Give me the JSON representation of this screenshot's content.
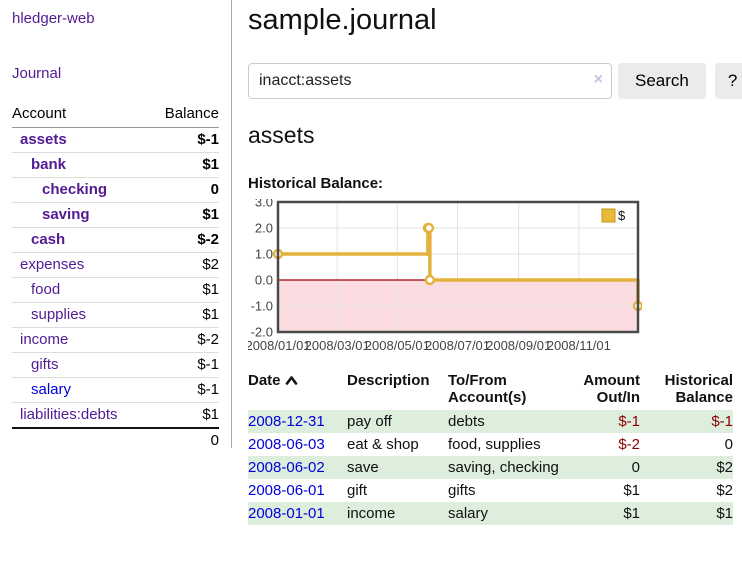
{
  "app": {
    "title": "hledger-web"
  },
  "sidebar": {
    "journal_link": "Journal",
    "accounts": {
      "headers": [
        "Account",
        "Balance"
      ],
      "rows": [
        {
          "name": "assets",
          "balance": "$-1"
        },
        {
          "name": "bank",
          "balance": "$1"
        },
        {
          "name": "checking",
          "balance": "0"
        },
        {
          "name": "saving",
          "balance": "$1"
        },
        {
          "name": "cash",
          "balance": "$-2"
        },
        {
          "name": "expenses",
          "balance": "$2"
        },
        {
          "name": "food",
          "balance": "$1"
        },
        {
          "name": "supplies",
          "balance": "$1"
        },
        {
          "name": "income",
          "balance": "$-2"
        },
        {
          "name": "gifts",
          "balance": "$-1"
        },
        {
          "name": "salary",
          "balance": "$-1"
        },
        {
          "name": "liabilities:debts",
          "balance": "$1"
        }
      ],
      "total": "0"
    }
  },
  "main": {
    "title": "sample.journal",
    "search": {
      "value": "inacct:assets",
      "clear_icon": "×",
      "button_label": "Search",
      "help_label": "?"
    },
    "account_heading": "assets",
    "chart_label": "Historical Balance:",
    "register": {
      "headers": [
        "Date",
        "Description",
        "To/From Account(s)",
        "Amount Out/In",
        "Historical Balance"
      ],
      "rows": [
        {
          "date": "2008-12-31",
          "description": "pay off",
          "accounts": "debts",
          "amount": "$-1",
          "balance": "$-1"
        },
        {
          "date": "2008-06-03",
          "description": "eat & shop",
          "accounts": "food, supplies",
          "amount": "$-2",
          "balance": "0"
        },
        {
          "date": "2008-06-02",
          "description": "save",
          "accounts": "saving, checking",
          "amount": "0",
          "balance": "$2"
        },
        {
          "date": "2008-06-01",
          "description": "gift",
          "accounts": "gifts",
          "amount": "$1",
          "balance": "$2"
        },
        {
          "date": "2008-01-01",
          "description": "income",
          "accounts": "salary",
          "amount": "$1",
          "balance": "$1"
        }
      ]
    }
  },
  "chart_data": {
    "type": "line",
    "title": "Historical Balance",
    "steps": true,
    "legend": [
      {
        "label": "$",
        "color": "#e9b937"
      }
    ],
    "legend_position": "top-right",
    "grid": true,
    "ylim": [
      -2,
      3
    ],
    "y_ticks": [
      3.0,
      2.0,
      1.0,
      0.0,
      -1.0,
      -2.0
    ],
    "x_ticks": [
      "2008/01/01",
      "2008/03/01",
      "2008/05/01",
      "2008/07/01",
      "2008/09/01",
      "2008/11/01"
    ],
    "x_tick_days": [
      0,
      60,
      121,
      182,
      244,
      305
    ],
    "x_range_days": 365,
    "series": [
      {
        "name": "$",
        "points": [
          {
            "date": "2008-01-01",
            "day": 0,
            "value": 1
          },
          {
            "date": "2008-06-01",
            "day": 152,
            "value": 2
          },
          {
            "date": "2008-06-02",
            "day": 153,
            "value": 2
          },
          {
            "date": "2008-06-03",
            "day": 154,
            "value": 0
          },
          {
            "date": "2008-12-31",
            "day": 365,
            "value": -1
          }
        ]
      }
    ],
    "colors": {
      "line": "#e3b23c",
      "marker_fill": "#ffffff",
      "negative_region_fill": "#fbdce0",
      "zero_line": "#a40000",
      "gridline": "#e2e2e2",
      "plot_border": "#4a4a4a"
    }
  }
}
